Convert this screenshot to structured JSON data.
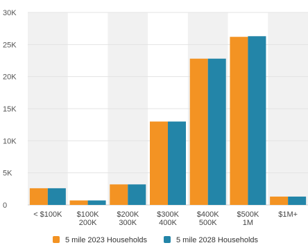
{
  "chart_data": {
    "type": "bar",
    "title": "",
    "xlabel": "",
    "ylabel": "",
    "categories": [
      [
        "< $100K"
      ],
      [
        "$100K",
        "200K"
      ],
      [
        "$200K",
        "300K"
      ],
      [
        "$300K",
        "400K"
      ],
      [
        "$400K",
        "500K"
      ],
      [
        "$500K",
        "1M"
      ],
      [
        "$1M+"
      ]
    ],
    "series": [
      {
        "name": "5 mile 2023 Households",
        "color": "#f39323",
        "values": [
          2600,
          700,
          3200,
          13000,
          22800,
          26200,
          1300
        ]
      },
      {
        "name": "5 mile 2028 Households",
        "color": "#2385a8",
        "values": [
          2600,
          700,
          3200,
          13000,
          22800,
          26300,
          1300
        ]
      }
    ],
    "ylim": [
      0,
      30000
    ],
    "yticks": [
      0,
      5000,
      10000,
      15000,
      20000,
      25000,
      30000
    ],
    "ytick_labels": [
      "0",
      "5K",
      "10K",
      "15K",
      "20K",
      "25K",
      "30K"
    ],
    "grid": true,
    "alternating_band_color": "#f1f1f1",
    "legend_position": "bottom"
  }
}
